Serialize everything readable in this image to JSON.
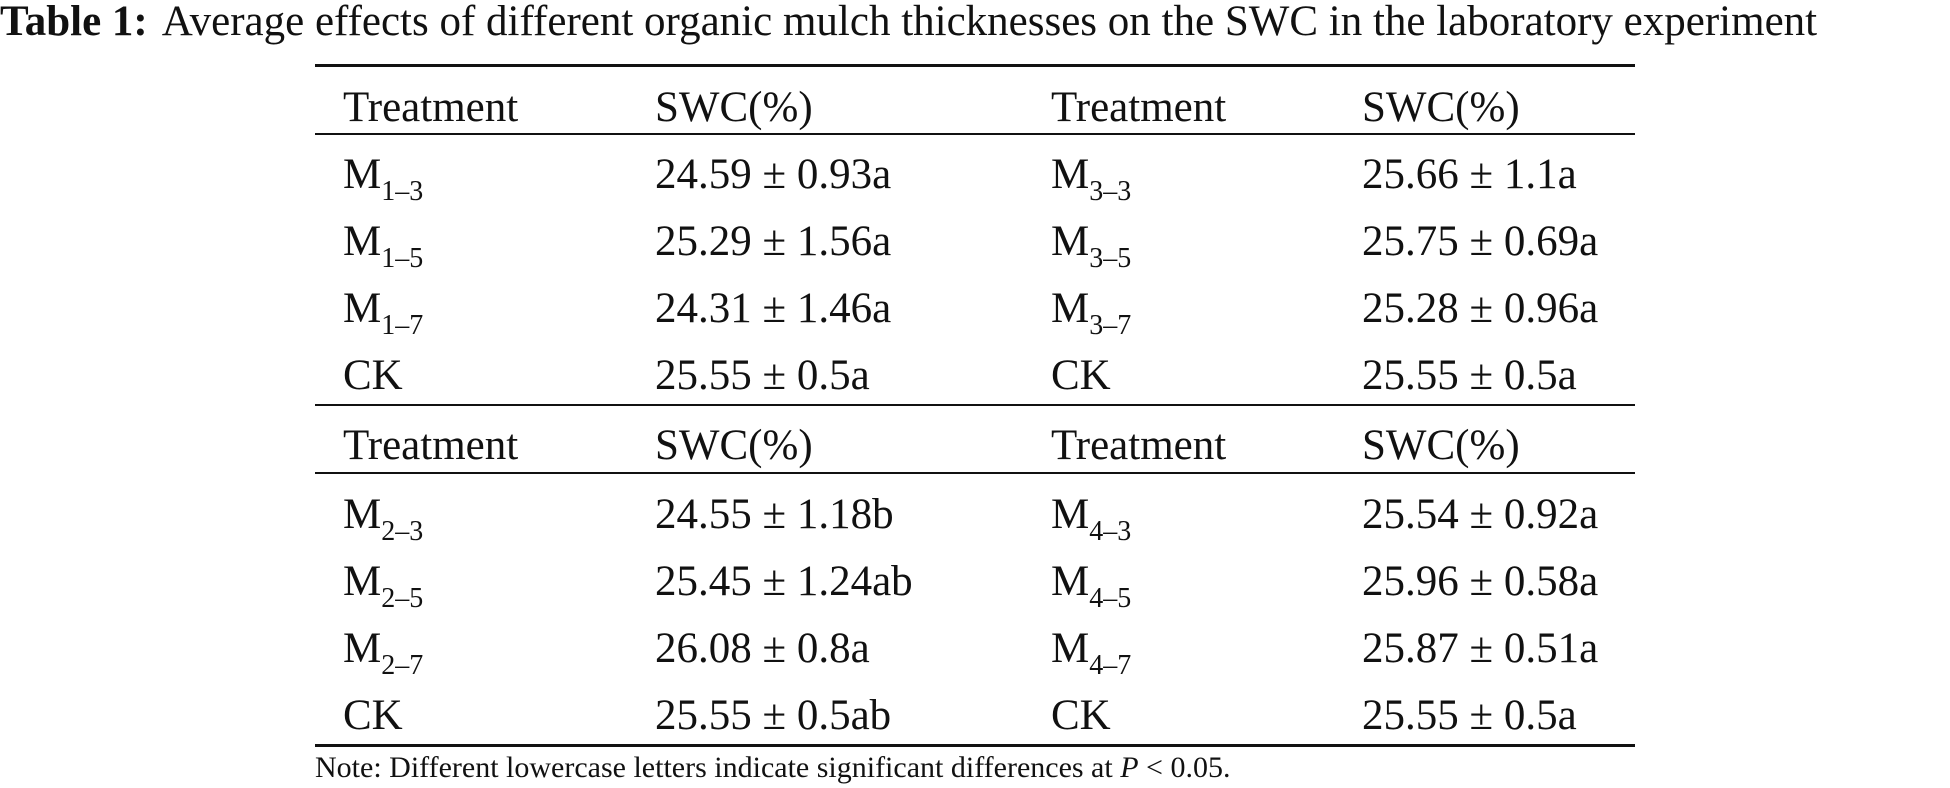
{
  "caption": {
    "label": "Table 1:",
    "text": "Average effects of different organic mulch thicknesses on the SWC in the laboratory experiment"
  },
  "blocks": [
    {
      "headers": [
        "Treatment",
        "SWC(%)",
        "Treatment",
        "SWC(%)"
      ],
      "rows": [
        {
          "t1": "M",
          "t1sub": "1–3",
          "v1": "24.59 ± 0.93a",
          "t2": "M",
          "t2sub": "3–3",
          "v2": "25.66 ± 1.1a"
        },
        {
          "t1": "M",
          "t1sub": "1–5",
          "v1": "25.29 ± 1.56a",
          "t2": "M",
          "t2sub": "3–5",
          "v2": "25.75 ± 0.69a"
        },
        {
          "t1": "M",
          "t1sub": "1–7",
          "v1": "24.31 ± 1.46a",
          "t2": "M",
          "t2sub": "3–7",
          "v2": "25.28 ± 0.96a"
        },
        {
          "t1": "CK",
          "t1sub": "",
          "v1": "25.55 ± 0.5a",
          "t2": "CK",
          "t2sub": "",
          "v2": "25.55 ± 0.5a"
        }
      ]
    },
    {
      "headers": [
        "Treatment",
        "SWC(%)",
        "Treatment",
        "SWC(%)"
      ],
      "rows": [
        {
          "t1": "M",
          "t1sub": "2–3",
          "v1": "24.55 ± 1.18b",
          "t2": "M",
          "t2sub": "4–3",
          "v2": "25.54 ± 0.92a"
        },
        {
          "t1": "M",
          "t1sub": "2–5",
          "v1": "25.45 ± 1.24ab",
          "t2": "M",
          "t2sub": "4–5",
          "v2": "25.96 ± 0.58a"
        },
        {
          "t1": "M",
          "t1sub": "2–7",
          "v1": "26.08 ± 0.8a",
          "t2": "M",
          "t2sub": "4–7",
          "v2": "25.87 ± 0.51a"
        },
        {
          "t1": "CK",
          "t1sub": "",
          "v1": "25.55 ± 0.5ab",
          "t2": "CK",
          "t2sub": "",
          "v2": "25.55 ± 0.5a"
        }
      ]
    }
  ],
  "note": {
    "prefix": "Note: Different lowercase letters indicate significant differences at ",
    "var": "P",
    "suffix": " < 0.05."
  }
}
